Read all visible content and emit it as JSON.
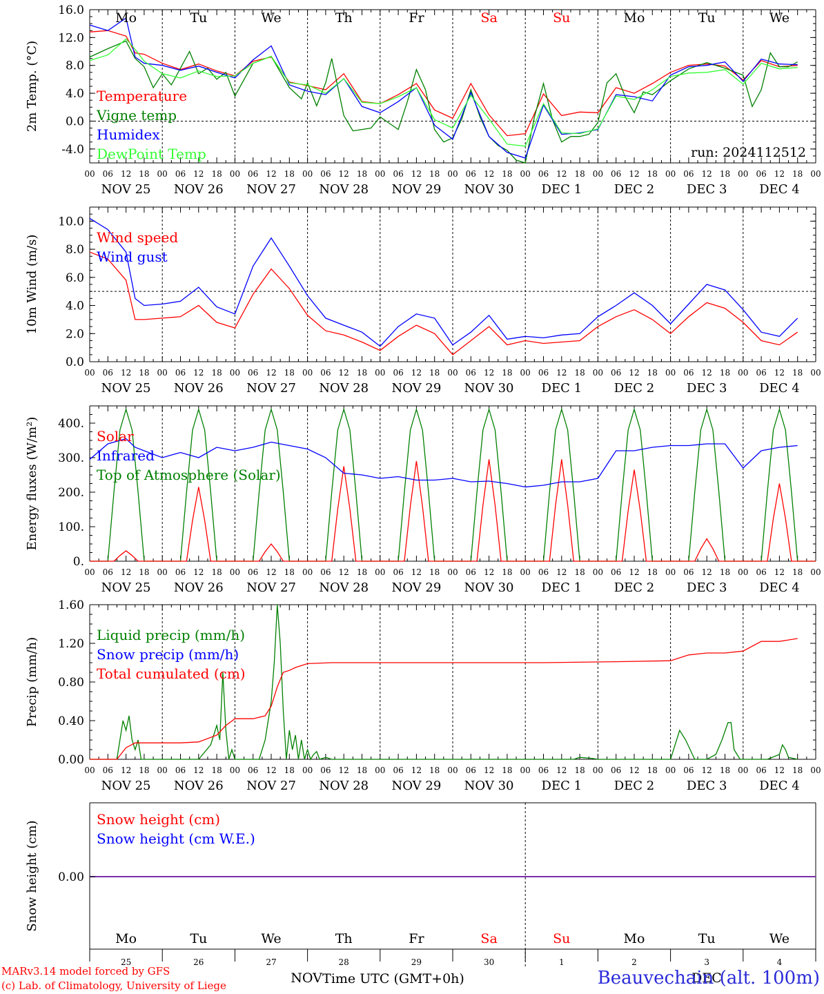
{
  "footer": {
    "model": "MARv3.14 model forced by GFS",
    "lab": "(c) Lab. of Climatology, University of Liege",
    "xlabel": "Time UTC (GMT+0h)",
    "station": "Beauvechain (alt. 100m)",
    "month_left": "NOV",
    "month_right": "DEC"
  },
  "chart_data": [
    {
      "type": "line",
      "ylabel": "2m Temp. (°C)",
      "ylim": [
        -6,
        16
      ],
      "yticks": [
        "16.0",
        "12.0",
        "8.0",
        "4.0",
        "0.0",
        "-4.0"
      ],
      "zero_line": 0,
      "annotation": "run: 2024112512",
      "days": [
        "Mo",
        "Tu",
        "We",
        "Th",
        "Fr",
        "Sa",
        "Su",
        "Mo",
        "Tu",
        "We"
      ],
      "weekend_days": [
        "Sa",
        "Su"
      ],
      "x_hour_labels": [
        "00",
        "06",
        "12",
        "18"
      ],
      "dates": [
        "NOV 25",
        "NOV 26",
        "NOV 27",
        "NOV 28",
        "NOV 29",
        "NOV 30",
        "DEC  1",
        "DEC  2",
        "DEC  3",
        "DEC  4"
      ],
      "x_unit": "hours since Nov 25 00 UTC",
      "series": [
        {
          "name": "Temperature",
          "color": "#ff0000",
          "x": [
            0,
            6,
            12,
            15,
            18,
            24,
            30,
            36,
            42,
            48,
            54,
            60,
            66,
            72,
            78,
            84,
            90,
            96,
            102,
            108,
            114,
            120,
            126,
            132,
            138,
            144,
            150,
            156,
            162,
            168,
            174,
            180,
            186,
            192,
            198,
            204,
            210,
            216,
            222,
            228,
            234
          ],
          "values": [
            12.8,
            13,
            12.2,
            9.8,
            9.6,
            8.3,
            7.4,
            8.2,
            7.2,
            6.5,
            8.6,
            9.2,
            5.6,
            5.1,
            4.5,
            6.8,
            2.8,
            2.5,
            3.8,
            5.4,
            1.6,
            0.4,
            5.4,
            0.9,
            -2.1,
            -1.8,
            3.9,
            0.8,
            1.3,
            1.2,
            4.8,
            4.0,
            5.4,
            7.0,
            8.0,
            8.2,
            7.9,
            5.9,
            8.7,
            7.8,
            8.0
          ]
        },
        {
          "name": "Vigne temp",
          "color": "#008000",
          "x": [
            0,
            6,
            12,
            15,
            18,
            21,
            24,
            27,
            30,
            33,
            36,
            39,
            42,
            45,
            48,
            54,
            60,
            66,
            70,
            72,
            75,
            78,
            80,
            84,
            87,
            90,
            93,
            96,
            102,
            105,
            108,
            111,
            114,
            117,
            120,
            123,
            126,
            129,
            132,
            135,
            138,
            141,
            144,
            147,
            150,
            153,
            156,
            159,
            162,
            165,
            168,
            171,
            174,
            177,
            180,
            183,
            186,
            192,
            198,
            204,
            210,
            216,
            219,
            222,
            225,
            228,
            231,
            234
          ],
          "values": [
            9.2,
            10.4,
            11.5,
            9,
            7.8,
            4.8,
            6.8,
            5.2,
            7.6,
            10,
            6.8,
            7.6,
            6,
            7,
            3.6,
            8.3,
            9.3,
            4.8,
            3.2,
            5.5,
            2.2,
            5.5,
            9,
            0.8,
            -1.4,
            -1.2,
            -1,
            0.6,
            -1.2,
            2.8,
            7.4,
            4.5,
            -1.2,
            -3.0,
            -2.4,
            0.3,
            4.5,
            0.6,
            -2.2,
            -3.5,
            -4.2,
            -5.6,
            -6,
            0.6,
            5.4,
            0.2,
            -3.0,
            -2.2,
            -2.2,
            -1.9,
            -0.2,
            5.5,
            6.8,
            3.5,
            1.2,
            4.2,
            3.8,
            5.8,
            7.5,
            8.4,
            7.6,
            6.6,
            2.1,
            4.5,
            9.8,
            7.8,
            7.8,
            8.5
          ]
        },
        {
          "name": "Humidex",
          "color": "#0000ff",
          "x": [
            0,
            6,
            12,
            15,
            18,
            24,
            30,
            36,
            42,
            48,
            54,
            60,
            66,
            72,
            78,
            84,
            90,
            96,
            102,
            108,
            114,
            120,
            126,
            132,
            138,
            144,
            150,
            156,
            162,
            168,
            174,
            180,
            186,
            192,
            198,
            204,
            210,
            216,
            222,
            228,
            234
          ],
          "values": [
            13.8,
            13,
            14.8,
            9.2,
            8.3,
            8,
            7.3,
            7.9,
            7.0,
            6.2,
            8.8,
            10.8,
            5.2,
            4.3,
            3.8,
            6.1,
            2.1,
            1.2,
            2.8,
            4.8,
            -0.6,
            -2.6,
            4.1,
            -2.2,
            -4.5,
            -5.3,
            2.3,
            -1.9,
            -1.7,
            -1.2,
            3.8,
            3.5,
            2.9,
            6.6,
            7.8,
            8.0,
            8.5,
            5.7,
            8.9,
            8.2,
            8.1
          ]
        },
        {
          "name": "DewPoint Temp",
          "color": "#33ff33",
          "x": [
            0,
            6,
            12,
            15,
            18,
            24,
            30,
            36,
            42,
            48,
            54,
            60,
            66,
            72,
            78,
            84,
            90,
            96,
            102,
            108,
            114,
            120,
            126,
            132,
            138,
            144,
            150,
            156,
            162,
            168,
            174,
            180,
            186,
            192,
            198,
            204,
            210,
            216,
            222,
            228,
            234
          ],
          "values": [
            8.7,
            9.5,
            11.8,
            10.3,
            8.6,
            6.8,
            6.2,
            7.2,
            6.4,
            6.5,
            8.3,
            9.3,
            5.5,
            5.2,
            4.0,
            6.1,
            2.7,
            2.5,
            3.5,
            4.8,
            0.2,
            -1.0,
            3.7,
            0.3,
            -3.3,
            -3.6,
            2.5,
            -1.7,
            -1.8,
            -1.1,
            3.6,
            3.1,
            4.5,
            6.4,
            6.9,
            7.0,
            7.4,
            5.3,
            8.3,
            7.5,
            7.7
          ]
        }
      ],
      "legend_placement": "top-left"
    },
    {
      "type": "line",
      "ylabel": "10m Wind (m/s)",
      "ylim": [
        0,
        11
      ],
      "yticks": [
        "10.0",
        "8.0",
        "6.0",
        "4.0",
        "2.0",
        "0.0"
      ],
      "ref_line": 5.0,
      "dates": [
        "NOV 25",
        "NOV 26",
        "NOV 27",
        "NOV 28",
        "NOV 29",
        "NOV 30",
        "DEC  1",
        "DEC  2",
        "DEC  3",
        "DEC  4"
      ],
      "series": [
        {
          "name": "Wind speed",
          "color": "#ff0000",
          "x": [
            0,
            6,
            12,
            15,
            18,
            24,
            30,
            36,
            42,
            48,
            54,
            60,
            66,
            72,
            78,
            84,
            90,
            96,
            102,
            108,
            114,
            120,
            126,
            132,
            138,
            144,
            150,
            156,
            162,
            168,
            174,
            180,
            186,
            192,
            198,
            204,
            210,
            216,
            222,
            228,
            234
          ],
          "values": [
            7.8,
            7.3,
            5.8,
            3.0,
            3.0,
            3.1,
            3.2,
            4.0,
            2.8,
            2.4,
            4.8,
            6.6,
            5.2,
            3.3,
            2.2,
            1.9,
            1.4,
            0.8,
            1.8,
            2.6,
            2.0,
            0.5,
            1.5,
            2.5,
            1.2,
            1.5,
            1.3,
            1.4,
            1.5,
            2.5,
            3.2,
            3.7,
            3.0,
            2.0,
            3.2,
            4.2,
            3.8,
            2.8,
            1.5,
            1.2,
            2.1
          ]
        },
        {
          "name": "Wind gust",
          "color": "#0000ff",
          "x": [
            0,
            6,
            12,
            15,
            18,
            24,
            30,
            36,
            42,
            48,
            54,
            60,
            66,
            72,
            78,
            84,
            90,
            96,
            102,
            108,
            114,
            120,
            126,
            132,
            138,
            144,
            150,
            156,
            162,
            168,
            174,
            180,
            186,
            192,
            198,
            204,
            210,
            216,
            222,
            228,
            234
          ],
          "values": [
            10.2,
            9.4,
            7.8,
            4.5,
            4.0,
            4.1,
            4.3,
            5.3,
            3.9,
            3.4,
            6.8,
            8.8,
            6.8,
            4.7,
            3.1,
            2.6,
            2.1,
            1.1,
            2.5,
            3.4,
            3.1,
            1.2,
            2.1,
            3.3,
            1.6,
            1.8,
            1.7,
            1.9,
            2.0,
            3.2,
            4.0,
            4.9,
            4.0,
            2.7,
            4.1,
            5.5,
            5.1,
            3.7,
            2.1,
            1.8,
            3.1
          ]
        }
      ],
      "legend_placement": "top-left"
    },
    {
      "type": "line",
      "ylabel": "Energy fluxes (W/m²)",
      "ylim": [
        0,
        450
      ],
      "yticks": [
        "400.",
        "300.",
        "200.",
        "100.",
        "0."
      ],
      "dates": [
        "NOV 25",
        "NOV 26",
        "NOV 27",
        "NOV 28",
        "NOV 29",
        "NOV 30",
        "DEC  1",
        "DEC  2",
        "DEC  3",
        "DEC  4"
      ],
      "solar_day_peaks": [
        30,
        215,
        50,
        275,
        290,
        295,
        295,
        265,
        65,
        225
      ],
      "toa_day_peak": 440,
      "series": [
        {
          "name": "Solar",
          "color": "#ff0000"
        },
        {
          "name": "Infrared",
          "color": "#0000ff",
          "x": [
            0,
            6,
            12,
            15,
            18,
            24,
            30,
            36,
            42,
            48,
            54,
            60,
            66,
            72,
            78,
            84,
            90,
            96,
            102,
            108,
            114,
            120,
            126,
            132,
            138,
            144,
            150,
            156,
            162,
            168,
            174,
            180,
            186,
            192,
            198,
            204,
            210,
            216,
            222,
            228,
            234
          ],
          "values": [
            295,
            340,
            355,
            330,
            320,
            300,
            315,
            300,
            330,
            320,
            330,
            345,
            335,
            325,
            300,
            255,
            250,
            240,
            245,
            235,
            235,
            240,
            230,
            232,
            225,
            215,
            220,
            230,
            230,
            240,
            320,
            320,
            330,
            335,
            335,
            340,
            340,
            270,
            320,
            330,
            335
          ]
        },
        {
          "name": "Top of Atmosphere (Solar)",
          "color": "#008000"
        }
      ],
      "legend_placement": "top-left"
    },
    {
      "type": "line",
      "ylabel": "Precip (mm/h)",
      "ylim": [
        0,
        1.6
      ],
      "yticks": [
        "1.60",
        "1.20",
        "0.80",
        "0.40",
        "0.00"
      ],
      "dates": [
        "NOV 25",
        "NOV 26",
        "NOV 27",
        "NOV 28",
        "NOV 29",
        "NOV 30",
        "DEC  1",
        "DEC  2",
        "DEC  3",
        "DEC  4"
      ],
      "series": [
        {
          "name": "Liquid precip (mm/h)",
          "color": "#008000",
          "x": [
            0,
            9,
            10,
            11,
            12,
            13,
            14,
            15,
            16,
            17,
            36,
            40,
            42,
            43,
            44,
            45,
            46,
            47,
            48,
            56,
            58,
            60,
            61,
            62,
            63,
            64,
            65,
            66,
            67,
            68,
            69,
            70,
            71,
            72,
            73,
            74,
            75,
            76,
            78,
            80,
            160,
            162,
            166,
            168,
            192,
            195,
            197,
            200,
            204,
            207,
            209,
            211,
            212,
            213,
            215,
            224,
            228,
            229,
            230,
            231,
            234
          ],
          "values": [
            0,
            0,
            0.2,
            0.4,
            0.3,
            0.45,
            0.2,
            0.1,
            0.2,
            0,
            0,
            0.15,
            0.35,
            0.2,
            0.9,
            0.3,
            0,
            0.1,
            0,
            0,
            0.2,
            0.6,
            1.0,
            1.6,
            1.2,
            0.5,
            0,
            0.3,
            0.1,
            0.25,
            0,
            0.2,
            0,
            0.1,
            0,
            0.05,
            0.08,
            0,
            0.02,
            0,
            0,
            0.02,
            0.01,
            0,
            0,
            0.3,
            0.2,
            0,
            0,
            0.05,
            0.2,
            0.38,
            0.38,
            0.1,
            0,
            0,
            0.05,
            0.15,
            0.1,
            0.02,
            0
          ]
        },
        {
          "name": "Snow precip (mm/h)",
          "color": "#0000ff"
        },
        {
          "name": "Total cumulated (cm)",
          "color": "#ff0000",
          "x": [
            0,
            9,
            12,
            15,
            30,
            36,
            42,
            45,
            48,
            54,
            58,
            60,
            62,
            64,
            66,
            68,
            72,
            80,
            96,
            120,
            150,
            174,
            192,
            198,
            204,
            210,
            216,
            222,
            228,
            234
          ],
          "values": [
            0,
            0,
            0.12,
            0.17,
            0.17,
            0.18,
            0.25,
            0.35,
            0.42,
            0.42,
            0.45,
            0.55,
            0.75,
            0.9,
            0.92,
            0.95,
            0.99,
            1.0,
            1.0,
            1.0,
            1.0,
            1.01,
            1.02,
            1.08,
            1.1,
            1.1,
            1.12,
            1.22,
            1.22,
            1.25
          ]
        }
      ],
      "legend_placement": "top-left"
    },
    {
      "type": "line",
      "ylabel": "Snow height (cm)",
      "ytick": "0.00",
      "series": [
        {
          "name": "Snow height (cm)",
          "color": "#ff0000"
        },
        {
          "name": "Snow height (cm W.E.)",
          "color": "#0000ff"
        }
      ],
      "values_const": 0.0,
      "days": [
        "Mo",
        "Tu",
        "We",
        "Th",
        "Fr",
        "Sa",
        "Su",
        "Mo",
        "Tu",
        "We"
      ],
      "day_numbers": [
        "25",
        "26",
        "27",
        "28",
        "29",
        "30",
        "1",
        "2",
        "3",
        "4"
      ],
      "legend_placement": "top-left"
    }
  ]
}
